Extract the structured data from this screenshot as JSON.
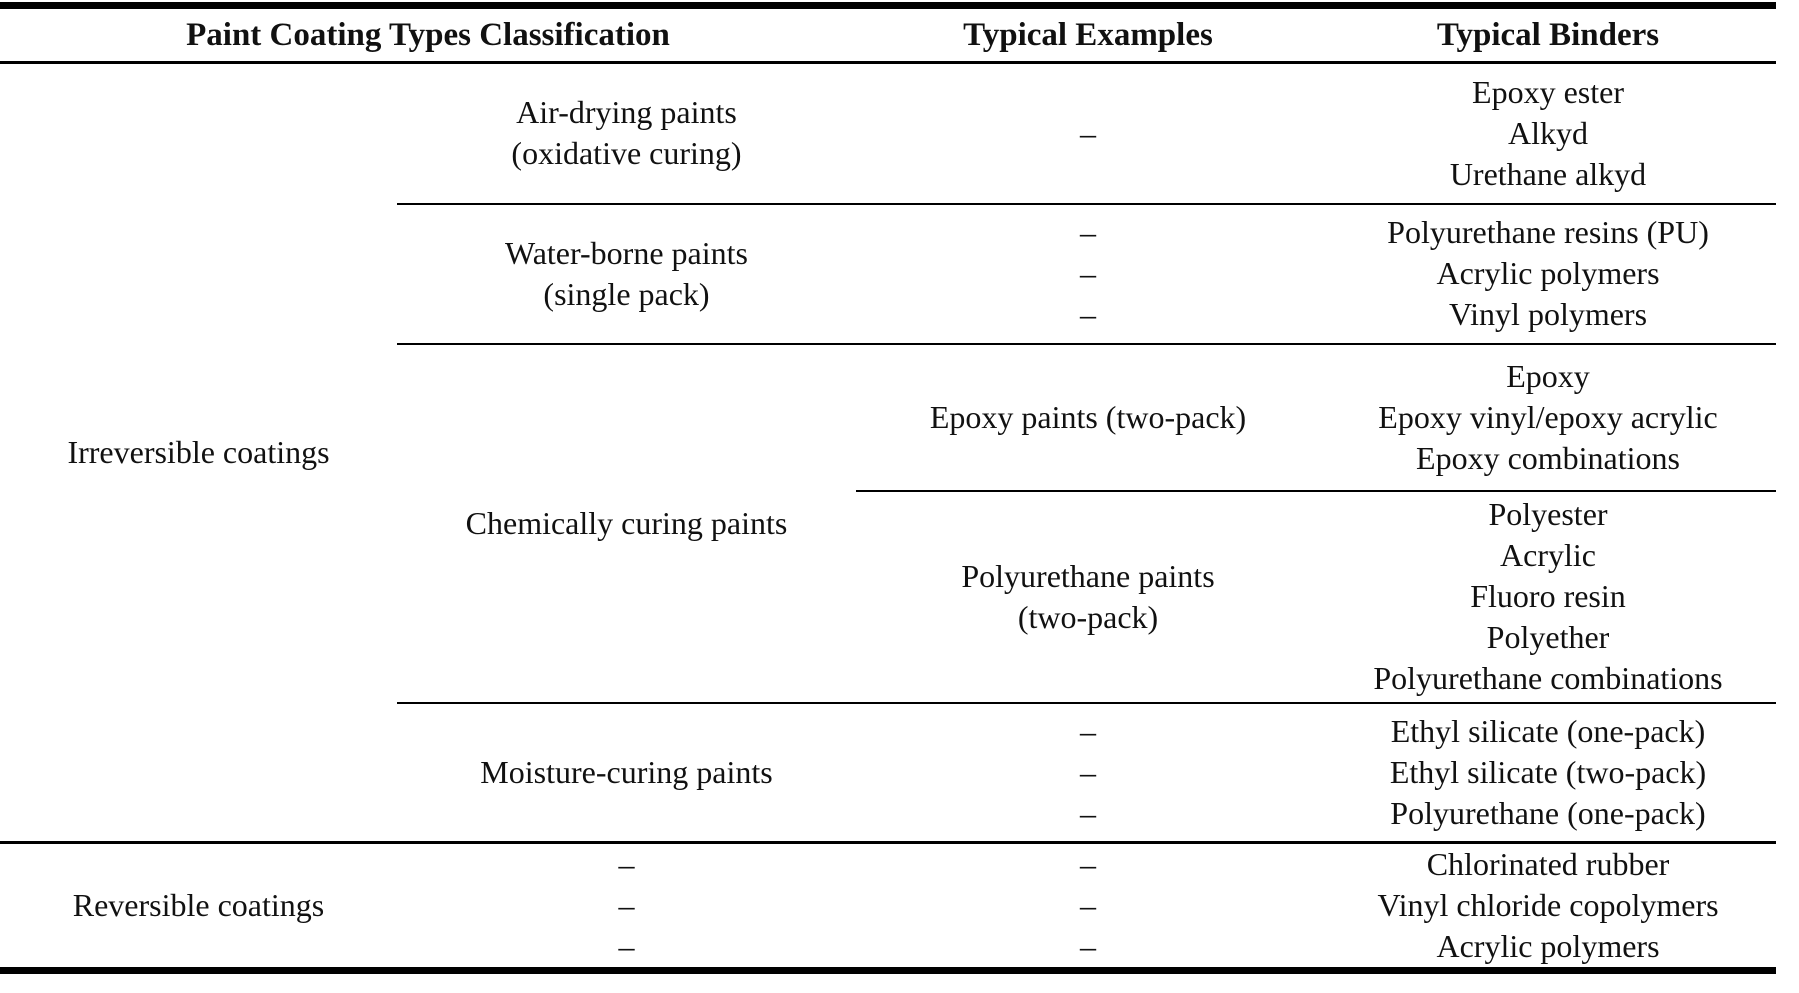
{
  "colors": {
    "background": "#ffffff",
    "text": "#111111",
    "rule": "#000000"
  },
  "table": {
    "col_headers": {
      "classification": "Paint Coating Types Classification",
      "examples": "Typical Examples",
      "binders": "Typical Binders"
    },
    "groups": {
      "irreversible": {
        "label": "Irreversible coatings",
        "rows": {
          "air_drying": {
            "type": [
              "Air-drying paints",
              "(oxidative curing)"
            ],
            "examples": [
              "–"
            ],
            "binders": [
              "Epoxy ester",
              "Alkyd",
              "Urethane alkyd"
            ]
          },
          "water_borne": {
            "type": [
              "Water-borne paints",
              "(single pack)"
            ],
            "examples": [
              "–",
              "–",
              "–"
            ],
            "binders": [
              "Polyurethane resins (PU)",
              "Acrylic polymers",
              "Vinyl polymers"
            ]
          },
          "chemically_curing": {
            "type": "Chemically curing paints",
            "subrows": {
              "epoxy": {
                "examples": [
                  "Epoxy paints (two-pack)"
                ],
                "binders": [
                  "Epoxy",
                  "Epoxy vinyl/epoxy acrylic",
                  "Epoxy combinations"
                ]
              },
              "polyurethane": {
                "examples": [
                  "Polyurethane paints",
                  "(two-pack)"
                ],
                "binders": [
                  "Polyester",
                  "Acrylic",
                  "Fluoro resin",
                  "Polyether",
                  "Polyurethane combinations"
                ]
              }
            }
          },
          "moisture_curing": {
            "type": "Moisture-curing paints",
            "examples": [
              "–",
              "–",
              "–"
            ],
            "binders": [
              "Ethyl silicate (one-pack)",
              "Ethyl silicate (two-pack)",
              "Polyurethane (one-pack)"
            ]
          }
        }
      },
      "reversible": {
        "label": "Reversible coatings",
        "type": [
          "–",
          "–",
          "–"
        ],
        "examples": [
          "–",
          "–",
          "–"
        ],
        "binders": [
          "Chlorinated rubber",
          "Vinyl chloride copolymers",
          "Acrylic polymers"
        ]
      }
    }
  }
}
